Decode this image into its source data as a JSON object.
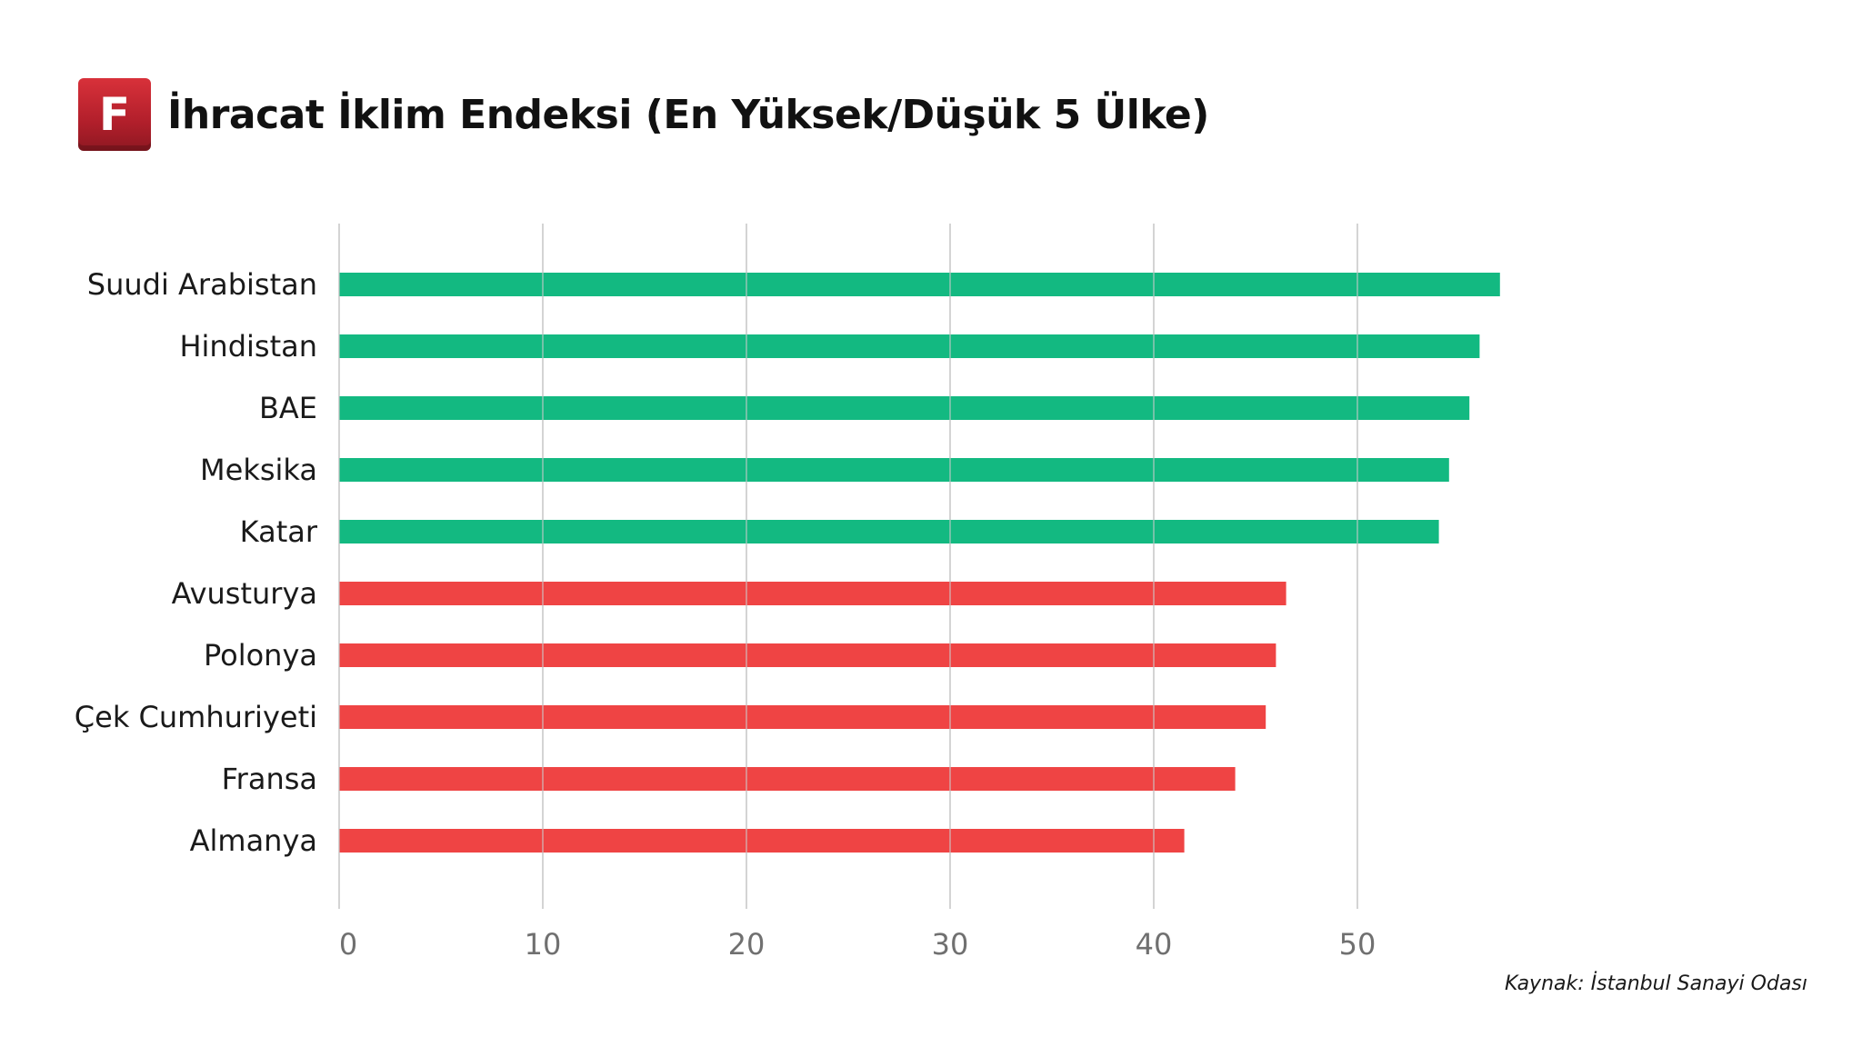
{
  "header": {
    "logo_letter": "F",
    "title": "İhracat İklim Endeksi (En Yüksek/Düşük 5 Ülke)"
  },
  "source": "Kaynak: İstanbul Sanayi Odası",
  "colors": {
    "top": "#13b981",
    "bottom": "#ef4444",
    "grid": "#cccccc",
    "logo": "#c0272f"
  },
  "chart_data": {
    "type": "bar",
    "orientation": "horizontal",
    "title": "İhracat İklim Endeksi (En Yüksek/Düşük 5 Ülke)",
    "xlabel": "",
    "ylabel": "",
    "xlim": [
      0,
      60
    ],
    "x_ticks": [
      0,
      10,
      20,
      30,
      40,
      50
    ],
    "grid": "vertical",
    "legend": "none",
    "categories": [
      "Suudi Arabistan",
      "Hindistan",
      "BAE",
      "Meksika",
      "Katar",
      "Avusturya",
      "Polonya",
      "Çek Cumhuriyeti",
      "Fransa",
      "Almanya"
    ],
    "values": [
      57.0,
      56.0,
      55.5,
      54.5,
      54.0,
      46.5,
      46.0,
      45.5,
      44.0,
      41.5
    ],
    "groups": [
      "top",
      "top",
      "top",
      "top",
      "top",
      "bottom",
      "bottom",
      "bottom",
      "bottom",
      "bottom"
    ]
  }
}
